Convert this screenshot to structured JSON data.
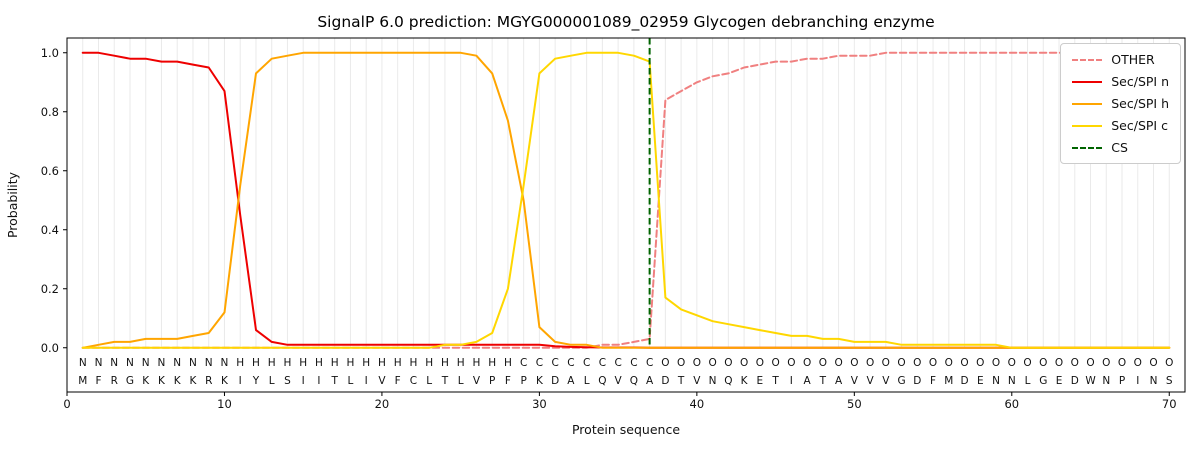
{
  "chart_data": {
    "type": "line",
    "title": "SignalP 6.0 prediction: MGYG000001089_02959 Glycogen debranching enzyme",
    "xlabel": "Protein sequence",
    "ylabel": "Probability",
    "xlim": [
      0,
      71
    ],
    "ylim": [
      -0.15,
      1.05
    ],
    "xticks": [
      0,
      10,
      20,
      30,
      40,
      50,
      60,
      70
    ],
    "yticks": [
      0,
      0.2,
      0.4,
      0.6,
      0.8,
      1
    ],
    "grid": "faint vertical gridline at every residue position",
    "legend_position": "upper right",
    "x_positions": "residue index 1 to 70, one value per residue",
    "series": [
      {
        "name": "OTHER",
        "color": "#f08080",
        "dash": true,
        "values": [
          0,
          0,
          0,
          0,
          0,
          0,
          0,
          0,
          0,
          0,
          0,
          0,
          0,
          0,
          0,
          0,
          0,
          0,
          0,
          0,
          0,
          0,
          0,
          0,
          0,
          0,
          0,
          0,
          0,
          0,
          0,
          0,
          0,
          0.01,
          0.01,
          0.02,
          0.03,
          0.84,
          0.87,
          0.9,
          0.92,
          0.93,
          0.95,
          0.96,
          0.97,
          0.97,
          0.98,
          0.98,
          0.99,
          0.99,
          0.99,
          1,
          1,
          1,
          1,
          1,
          1,
          1,
          1,
          1,
          1,
          1,
          1,
          1,
          1,
          1,
          1,
          1,
          1,
          1
        ]
      },
      {
        "name": "Sec/SPI n",
        "color": "#ee0000",
        "dash": false,
        "values": [
          1,
          1,
          0.99,
          0.98,
          0.98,
          0.97,
          0.97,
          0.96,
          0.95,
          0.87,
          0.45,
          0.06,
          0.02,
          0.01,
          0.01,
          0.01,
          0.01,
          0.01,
          0.01,
          0.01,
          0.01,
          0.01,
          0.01,
          0.01,
          0.01,
          0.01,
          0.01,
          0.01,
          0.01,
          0.01,
          0.005,
          0.003,
          0.002,
          0.001,
          0.001,
          0.001,
          0,
          0,
          0,
          0,
          0,
          0,
          0,
          0,
          0,
          0,
          0,
          0,
          0,
          0,
          0,
          0,
          0,
          0,
          0,
          0,
          0,
          0,
          0,
          0,
          0,
          0,
          0,
          0,
          0,
          0,
          0,
          0,
          0,
          0
        ]
      },
      {
        "name": "Sec/SPI h",
        "color": "#ffa500",
        "dash": false,
        "values": [
          0,
          0.01,
          0.02,
          0.02,
          0.03,
          0.03,
          0.03,
          0.04,
          0.05,
          0.12,
          0.55,
          0.93,
          0.98,
          0.99,
          1,
          1,
          1,
          1,
          1,
          1,
          1,
          1,
          1,
          1,
          1,
          0.99,
          0.93,
          0.77,
          0.5,
          0.07,
          0.02,
          0.01,
          0.01,
          0,
          0,
          0,
          0,
          0,
          0,
          0,
          0,
          0,
          0,
          0,
          0,
          0,
          0,
          0,
          0,
          0,
          0,
          0,
          0,
          0,
          0,
          0,
          0,
          0,
          0,
          0,
          0,
          0,
          0,
          0,
          0,
          0,
          0,
          0,
          0,
          0
        ]
      },
      {
        "name": "Sec/SPI c",
        "color": "#ffd700",
        "dash": false,
        "values": [
          0,
          0,
          0,
          0,
          0,
          0,
          0,
          0,
          0,
          0,
          0,
          0,
          0,
          0,
          0,
          0,
          0,
          0,
          0,
          0,
          0,
          0,
          0,
          0.01,
          0.01,
          0.02,
          0.05,
          0.2,
          0.55,
          0.93,
          0.98,
          0.99,
          1,
          1,
          1,
          0.99,
          0.97,
          0.17,
          0.13,
          0.11,
          0.09,
          0.08,
          0.07,
          0.06,
          0.05,
          0.04,
          0.04,
          0.03,
          0.03,
          0.02,
          0.02,
          0.02,
          0.01,
          0.01,
          0.01,
          0.01,
          0.01,
          0.01,
          0.01,
          0,
          0,
          0,
          0,
          0,
          0,
          0,
          0,
          0,
          0,
          0
        ]
      }
    ],
    "cs_line": {
      "name": "CS",
      "x": 37,
      "color": "#006400",
      "dash": true
    },
    "sequence": "MFRGKKKKRKIYLSIITLIVFCLTLVPFPKDALQVQADTVNQKETIATAVVVGDFMDENNLGEDWNPINS",
    "regions": "NNNNNNNNNNHHHHHHHHHHHHHHHHHHCCCCCCCCCOOOOOOOOOOOOOOOOOOOOOOOOOOOOOOOOO",
    "region_colors": {
      "N": "#ee0000",
      "H": "#ffa500",
      "C": "#f0c400",
      "O": "#a0a0a0"
    }
  }
}
